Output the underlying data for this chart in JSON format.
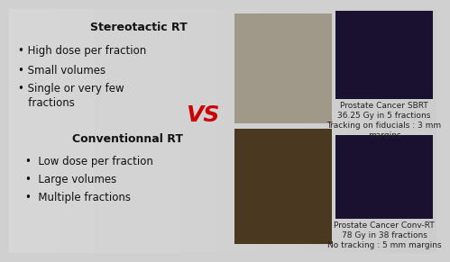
{
  "bg_color_left": "#d0d0d0",
  "bg_color_right": "#c8c8c8",
  "title_stereo": "Stereotactic RT",
  "bullets_stereo": [
    "• High dose per fraction",
    "• Small volumes",
    "• Single or very few\n   fractions"
  ],
  "vs_text": "VS",
  "vs_color": "#cc0000",
  "title_conv": "Conventionnal RT",
  "bullets_conv": [
    "•  Low dose per fraction",
    "•  Large volumes",
    "•  Multiple fractions"
  ],
  "caption_top": "Prostate Cancer SBRT\n36.25 Gy in 5 fractions\nTracking on fiducials : 3 mm\nmargins",
  "caption_bottom": "Prostate Cancer Conv-RT\n78 Gy in 38 fractions\nNo tracking : 5 mm margins",
  "text_color": "#111111",
  "caption_color": "#222222",
  "title_fontsize": 9,
  "bullet_fontsize": 8.5,
  "caption_fontsize": 6.5,
  "vs_fontsize": 18,
  "img_robot_color": "#a09888",
  "img_mri_color": "#4a3820",
  "img_dose1_color": "#1a1030",
  "img_dose2_color": "#1a1030"
}
